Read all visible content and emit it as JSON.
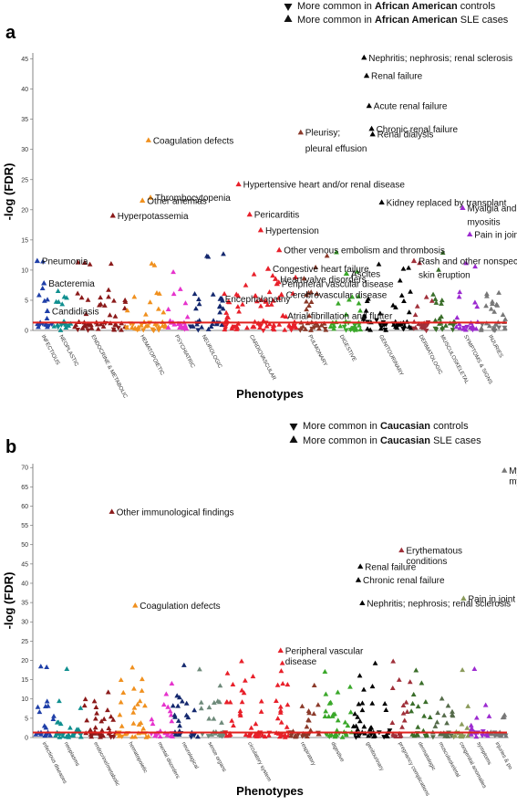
{
  "chart_data": [
    {
      "panel": "a",
      "type": "scatter",
      "ylabel": "-log (FDR)",
      "xlabel": "Phenotypes",
      "ylim": [
        0,
        46
      ],
      "yticks": [
        0,
        5,
        10,
        15,
        20,
        25,
        30,
        35,
        40,
        45
      ],
      "threshold": 1.3,
      "legend": {
        "down_prefix": "More common in ",
        "down_bold": "African American",
        "down_suffix": " controls",
        "up_prefix": "More common in ",
        "up_bold": "African American",
        "up_suffix": " SLE cases"
      },
      "categories": [
        {
          "label": "INFECTIOUS",
          "color": "#1f3fa8",
          "n": 10
        },
        {
          "label": "NEOPLASTIC",
          "color": "#0f8f8f",
          "n": 12
        },
        {
          "label": "ENDOCRINE & METABOLIC",
          "color": "#8b1a1a",
          "n": 32
        },
        {
          "label": "HEMATOPOIETIC",
          "color": "#f0901e",
          "n": 24
        },
        {
          "label": "PSYCHIATRIC",
          "color": "#e633cc",
          "n": 14
        },
        {
          "label": "NEUROLOGIC",
          "color": "#14286e",
          "n": 20
        },
        {
          "label": "CARDIOVASCULAR",
          "color": "#e8202a",
          "n": 44
        },
        {
          "label": "PULMONARY",
          "color": "#8b3a2a",
          "n": 18
        },
        {
          "label": "DIGESTIVE",
          "color": "#3aa82a",
          "n": 20
        },
        {
          "label": "GENITOURINARY",
          "color": "#000000",
          "n": 30
        },
        {
          "label": "DERMATOLOGIC",
          "color": "#a0303a",
          "n": 12
        },
        {
          "label": "MUSCULOSKELETAL",
          "color": "#3a6e2a",
          "n": 14
        },
        {
          "label": "SYMPTOMS & SIGNS",
          "color": "#9c2ad0",
          "n": 14
        },
        {
          "label": "INJURIES",
          "color": "#777777",
          "n": 16
        }
      ],
      "annotations": [
        {
          "cat": 0,
          "pos": 0.1,
          "y": 11.5,
          "text": "Pneumonia"
        },
        {
          "cat": 0,
          "pos": 0.5,
          "y": 7.8,
          "text": "Bacteremia"
        },
        {
          "cat": 0,
          "pos": 0.7,
          "y": 3.2,
          "text": "Candidiasis"
        },
        {
          "cat": 2,
          "pos": 0.75,
          "y": 19.0,
          "text": "Hyperpotassemia"
        },
        {
          "cat": 3,
          "pos": 0.55,
          "y": 31.5,
          "text": "Coagulation defects"
        },
        {
          "cat": 3,
          "pos": 0.6,
          "y": 22.0,
          "text": "Thrombocytopenia"
        },
        {
          "cat": 3,
          "pos": 0.4,
          "y": 21.5,
          "text": "Other anemias"
        },
        {
          "cat": 5,
          "pos": 0.9,
          "y": 5.2,
          "text": "Encephalopathy"
        },
        {
          "cat": 6,
          "pos": 0.2,
          "y": 24.2,
          "text": "Hypertensive heart and/or renal disease"
        },
        {
          "cat": 6,
          "pos": 0.35,
          "y": 19.2,
          "text": "Pericarditis"
        },
        {
          "cat": 6,
          "pos": 0.5,
          "y": 16.6,
          "text": "Hypertension"
        },
        {
          "cat": 6,
          "pos": 0.75,
          "y": 13.3,
          "text": "Other venous embolism and thrombosis"
        },
        {
          "cat": 6,
          "pos": 0.6,
          "y": 10.2,
          "text": "Congestive heart failure"
        },
        {
          "cat": 6,
          "pos": 0.7,
          "y": 8.5,
          "text": "Heart valve disorders"
        },
        {
          "cat": 6,
          "pos": 0.72,
          "y": 7.7,
          "text": "Peripheral vascular disease"
        },
        {
          "cat": 6,
          "pos": 0.78,
          "y": 5.9,
          "text": "Cerebrovascular disease"
        },
        {
          "cat": 6,
          "pos": 0.8,
          "y": 2.4,
          "text": "Atrial fibrillation and flutter"
        },
        {
          "cat": 7,
          "pos": 0.1,
          "y": 32.8,
          "text": "Pleurisy;"
        },
        {
          "cat": 8,
          "pos": 0.55,
          "y": 9.4,
          "text": "Ascites"
        },
        {
          "cat": 9,
          "pos": 0.05,
          "y": 45.2,
          "text": "Nephritis; nephrosis; renal sclerosis"
        },
        {
          "cat": 9,
          "pos": 0.1,
          "y": 42.2,
          "text": "Renal failure"
        },
        {
          "cat": 9,
          "pos": 0.15,
          "y": 37.2,
          "text": "Acute renal failure"
        },
        {
          "cat": 9,
          "pos": 0.2,
          "y": 33.4,
          "text": "Chronic renal failure"
        },
        {
          "cat": 9,
          "pos": 0.22,
          "y": 32.5,
          "text": "Renal dialysis"
        },
        {
          "cat": 9,
          "pos": 0.4,
          "y": 21.2,
          "text": "Kidney replaced by transplant"
        },
        {
          "cat": 10,
          "pos": 0.1,
          "y": 11.5,
          "text": "Rash and other nonspecific"
        },
        {
          "cat": 12,
          "pos": 0.3,
          "y": 20.3,
          "text": "Myalgia and"
        },
        {
          "cat": 12,
          "pos": 0.6,
          "y": 15.9,
          "text": "Pain in joint"
        }
      ],
      "ann_extra": [
        {
          "cat": 7,
          "pos": 0.1,
          "y": 30.2,
          "text": "pleural effusion"
        },
        {
          "cat": 10,
          "pos": 0.1,
          "y": 9.2,
          "text": "skin eruption"
        },
        {
          "cat": 12,
          "pos": 0.3,
          "y": 18.0,
          "text": "myositis"
        }
      ]
    },
    {
      "panel": "b",
      "type": "scatter",
      "ylabel": "-log (FDR)",
      "xlabel": "Phenotypes",
      "ylim": [
        0,
        71
      ],
      "yticks": [
        0,
        5,
        10,
        15,
        20,
        25,
        30,
        35,
        40,
        45,
        50,
        55,
        60,
        65,
        70
      ],
      "threshold": 1.3,
      "legend": {
        "down_prefix": "More common in ",
        "down_bold": "Caucasian",
        "down_suffix": " controls",
        "up_prefix": "More common in ",
        "up_bold": "Caucasian",
        "up_suffix": " SLE cases"
      },
      "categories": [
        {
          "label": "infectious diseases",
          "color": "#1f3fa8",
          "n": 12
        },
        {
          "label": "neoplasms",
          "color": "#0f8f8f",
          "n": 16
        },
        {
          "label": "endocrine/metabolic",
          "color": "#8b1a1a",
          "n": 22
        },
        {
          "label": "hematopoietic",
          "color": "#f0901e",
          "n": 20
        },
        {
          "label": "mental disorders",
          "color": "#e633cc",
          "n": 14
        },
        {
          "label": "neurological",
          "color": "#14286e",
          "n": 16
        },
        {
          "label": "sense organs",
          "color": "#6e8a7a",
          "n": 16
        },
        {
          "label": "circulatory system",
          "color": "#e8202a",
          "n": 40
        },
        {
          "label": "respiratory",
          "color": "#8b3a2a",
          "n": 18
        },
        {
          "label": "digestive",
          "color": "#3aa82a",
          "n": 20
        },
        {
          "label": "genitourinary",
          "color": "#000000",
          "n": 24
        },
        {
          "label": "pregnancy complications",
          "color": "#a0303a",
          "n": 12
        },
        {
          "label": "dermatologic",
          "color": "#3a6e2a",
          "n": 12
        },
        {
          "label": "musculoskeletal",
          "color": "#556b4a",
          "n": 14
        },
        {
          "label": "congenital anomalies",
          "color": "#8a9a5a",
          "n": 10
        },
        {
          "label": "symptoms",
          "color": "#9c2ad0",
          "n": 12
        },
        {
          "label": "injuries & po",
          "color": "#777777",
          "n": 10
        }
      ],
      "annotations": [
        {
          "cat": 2,
          "pos": 0.85,
          "y": 58.5,
          "text": "Other immunological findings"
        },
        {
          "cat": 3,
          "pos": 0.55,
          "y": 34.2,
          "text": "Coagulation defects"
        },
        {
          "cat": 7,
          "pos": 0.85,
          "y": 22.5,
          "text": "Peripheral vascular"
        },
        {
          "cat": 10,
          "pos": 0.2,
          "y": 44.3,
          "text": "Renal failure"
        },
        {
          "cat": 10,
          "pos": 0.15,
          "y": 40.8,
          "text": "Chronic renal failure"
        },
        {
          "cat": 10,
          "pos": 0.25,
          "y": 34.8,
          "text": "Nephritis; nephrosis; renal sclerosis"
        },
        {
          "cat": 11,
          "pos": 0.5,
          "y": 48.5,
          "text": "Erythematous"
        },
        {
          "cat": 14,
          "pos": 0.6,
          "y": 36.0,
          "text": "Pain in joint"
        },
        {
          "cat": 16,
          "pos": 0.9,
          "y": 69.2,
          "text": "Myalgia and"
        }
      ],
      "ann_extra": [
        {
          "cat": 7,
          "pos": 0.85,
          "y": 19.8,
          "text": "disease"
        },
        {
          "cat": 11,
          "pos": 0.5,
          "y": 45.8,
          "text": "conditions"
        },
        {
          "cat": 16,
          "pos": 0.9,
          "y": 66.5,
          "text": "myositis"
        }
      ]
    }
  ]
}
